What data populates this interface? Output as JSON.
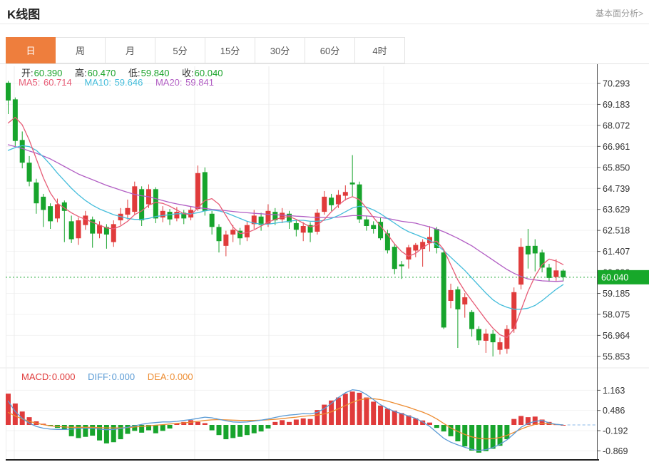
{
  "header": {
    "title": "K线图",
    "link_label": "基本面分析>"
  },
  "tabs": {
    "items": [
      {
        "label": "日",
        "active": true
      },
      {
        "label": "周",
        "active": false
      },
      {
        "label": "月",
        "active": false
      },
      {
        "label": "5分",
        "active": false
      },
      {
        "label": "15分",
        "active": false
      },
      {
        "label": "30分",
        "active": false
      },
      {
        "label": "60分",
        "active": false
      },
      {
        "label": "4时",
        "active": false
      }
    ]
  },
  "indicators": {
    "open_label": "开:",
    "open": "60.390",
    "high_label": "高:",
    "high": "60.470",
    "low_label": "低:",
    "low": "59.840",
    "close_label": "收:",
    "close": "60.040",
    "ma5_label": "MA5:",
    "ma5": "60.714",
    "ma10_label": "MA10:",
    "ma10": "59.646",
    "ma20_label": "MA20:",
    "ma20": "59.841",
    "macd_label": "MACD:",
    "macd": "0.000",
    "diff_label": "DIFF:",
    "diff": "0.000",
    "dea_label": "DEA:",
    "dea": "0.000"
  },
  "colors": {
    "up": "#e03b3b",
    "down": "#17a42c",
    "ma5": "#e75c76",
    "ma10": "#45bddb",
    "ma20": "#b25fc4",
    "diff": "#5b9bd5",
    "dea": "#ed8c31",
    "macd_text": "#e03b3b",
    "tab_accent": "#ee7e3d",
    "badge": "#17a82a",
    "price_line": "#21a636",
    "grid": "#f3f3f3",
    "vgrid": "#ececec",
    "axis": "#555555",
    "tick_text": "#333333"
  },
  "chart_data": {
    "type": "candlestick+macd",
    "main": {
      "title": "K线图 daily candlesticks",
      "y_ticks": [
        "70.293",
        "69.183",
        "68.072",
        "66.961",
        "65.850",
        "64.739",
        "63.629",
        "62.518",
        "61.407",
        "60.296",
        "59.185",
        "58.075",
        "56.964",
        "55.853"
      ],
      "axis_top_value": 70.293,
      "axis_bottom_value": 55.853,
      "last_price": "60.040",
      "price_line_value": 60.04,
      "candles": [
        [
          70.33,
          70.42,
          68.67,
          69.39
        ],
        [
          69.45,
          69.55,
          66.98,
          67.25
        ],
        [
          67.3,
          67.75,
          65.8,
          66.1
        ],
        [
          66.1,
          66.45,
          64.85,
          65.1
        ],
        [
          65.05,
          65.25,
          63.4,
          63.95
        ],
        [
          64.3,
          64.45,
          62.7,
          63.6
        ],
        [
          63.8,
          63.95,
          62.6,
          63.0
        ],
        [
          63.15,
          64.2,
          62.95,
          63.9
        ],
        [
          64.0,
          64.1,
          61.9,
          63.55
        ],
        [
          63.0,
          63.3,
          61.85,
          62.05
        ],
        [
          62.1,
          63.2,
          61.75,
          63.05
        ],
        [
          62.8,
          63.55,
          62.55,
          63.3
        ],
        [
          63.1,
          63.25,
          61.6,
          62.35
        ],
        [
          62.35,
          63.0,
          62.1,
          62.8
        ],
        [
          62.7,
          62.85,
          61.55,
          62.3
        ],
        [
          61.9,
          63.05,
          61.65,
          62.85
        ],
        [
          63.05,
          63.7,
          62.8,
          63.4
        ],
        [
          63.35,
          64.15,
          63.1,
          63.7
        ],
        [
          63.5,
          65.1,
          63.35,
          64.85
        ],
        [
          64.7,
          64.85,
          62.75,
          63.05
        ],
        [
          63.9,
          64.95,
          63.7,
          64.7
        ],
        [
          64.7,
          64.8,
          62.9,
          63.15
        ],
        [
          63.2,
          63.8,
          62.95,
          63.55
        ],
        [
          63.5,
          63.65,
          62.8,
          63.1
        ],
        [
          63.15,
          63.75,
          63.0,
          63.5
        ],
        [
          63.45,
          63.6,
          62.85,
          63.15
        ],
        [
          63.2,
          63.8,
          63.05,
          63.6
        ],
        [
          63.65,
          65.95,
          63.55,
          65.55
        ],
        [
          65.6,
          65.85,
          63.3,
          63.55
        ],
        [
          63.4,
          63.55,
          62.3,
          62.7
        ],
        [
          62.7,
          62.85,
          61.35,
          61.95
        ],
        [
          61.7,
          62.5,
          61.15,
          62.3
        ],
        [
          62.3,
          62.8,
          61.9,
          62.55
        ],
        [
          62.5,
          62.65,
          61.75,
          62.1
        ],
        [
          62.15,
          63.0,
          61.95,
          62.8
        ],
        [
          62.85,
          63.6,
          62.6,
          63.3
        ],
        [
          63.25,
          63.45,
          62.5,
          62.8
        ],
        [
          62.85,
          63.9,
          62.7,
          63.55
        ],
        [
          63.5,
          63.7,
          62.8,
          63.05
        ],
        [
          63.1,
          63.7,
          62.9,
          63.45
        ],
        [
          63.4,
          63.55,
          62.6,
          62.95
        ],
        [
          62.9,
          63.05,
          62.2,
          62.55
        ],
        [
          62.4,
          62.95,
          61.95,
          62.75
        ],
        [
          62.8,
          62.95,
          61.9,
          62.4
        ],
        [
          62.45,
          63.65,
          62.3,
          63.45
        ],
        [
          63.5,
          64.6,
          63.35,
          64.3
        ],
        [
          64.25,
          64.45,
          63.55,
          63.85
        ],
        [
          63.9,
          64.65,
          63.7,
          64.4
        ],
        [
          64.35,
          64.9,
          64.1,
          64.55
        ],
        [
          65.05,
          66.5,
          64.3,
          64.95
        ],
        [
          64.95,
          65.1,
          62.9,
          63.1
        ],
        [
          63.1,
          63.3,
          62.5,
          62.75
        ],
        [
          62.8,
          63.0,
          62.35,
          62.6
        ],
        [
          62.97,
          63.2,
          62.0,
          62.1
        ],
        [
          62.36,
          62.55,
          61.3,
          61.46
        ],
        [
          61.65,
          61.8,
          60.2,
          60.48
        ],
        [
          60.72,
          60.9,
          59.95,
          60.62
        ],
        [
          60.98,
          61.75,
          60.5,
          61.62
        ],
        [
          61.45,
          61.85,
          61.1,
          61.75
        ],
        [
          61.54,
          62.05,
          60.6,
          61.91
        ],
        [
          61.84,
          62.74,
          61.4,
          62.17
        ],
        [
          62.6,
          62.7,
          61.3,
          61.58
        ],
        [
          61.35,
          61.45,
          57.3,
          57.38
        ],
        [
          58.79,
          59.7,
          58.4,
          59.36
        ],
        [
          59.4,
          59.55,
          56.3,
          58.34
        ],
        [
          58.6,
          59.2,
          57.9,
          58.98
        ],
        [
          58.2,
          58.3,
          56.9,
          57.3
        ],
        [
          57.3,
          57.45,
          56.45,
          56.7
        ],
        [
          56.68,
          57.3,
          56.04,
          57.06
        ],
        [
          57.05,
          57.25,
          55.85,
          56.6
        ],
        [
          56.2,
          56.85,
          55.95,
          56.6
        ],
        [
          56.25,
          57.5,
          56.0,
          57.3
        ],
        [
          57.3,
          59.5,
          57.1,
          59.25
        ],
        [
          59.65,
          62.1,
          59.4,
          61.65
        ],
        [
          61.7,
          62.6,
          60.5,
          61.25
        ],
        [
          61.7,
          62.05,
          60.35,
          61.3
        ],
        [
          61.35,
          61.5,
          60.3,
          60.55
        ],
        [
          60.55,
          60.75,
          59.8,
          60.0
        ],
        [
          60.05,
          61.0,
          59.85,
          60.4
        ],
        [
          60.39,
          60.47,
          59.84,
          60.04
        ]
      ],
      "ma5": [
        68.2,
        68.5,
        68.1,
        67.3,
        66.3,
        65.3,
        64.5,
        63.95,
        63.7,
        63.45,
        63.25,
        63.1,
        62.95,
        62.8,
        62.65,
        62.6,
        62.75,
        63.0,
        63.35,
        63.55,
        63.85,
        64.0,
        63.95,
        63.8,
        63.6,
        63.4,
        63.35,
        63.7,
        64.1,
        64.2,
        63.9,
        63.3,
        62.7,
        62.35,
        62.4,
        62.55,
        62.75,
        62.95,
        63.1,
        63.2,
        63.25,
        63.1,
        62.9,
        62.7,
        62.8,
        63.1,
        63.5,
        63.85,
        64.15,
        64.3,
        64.15,
        63.7,
        63.2,
        62.75,
        62.3,
        61.8,
        61.4,
        61.15,
        61.3,
        61.6,
        61.85,
        61.95,
        61.5,
        60.7,
        59.9,
        59.3,
        58.8,
        58.3,
        57.8,
        57.35,
        57.0,
        56.85,
        57.3,
        58.3,
        59.3,
        60.1,
        60.7,
        61.0,
        60.9,
        60.71
      ],
      "ma10": [
        66.75,
        66.9,
        67.0,
        66.95,
        66.75,
        66.4,
        66.0,
        65.55,
        65.15,
        64.75,
        64.4,
        64.1,
        63.85,
        63.65,
        63.5,
        63.35,
        63.25,
        63.15,
        63.1,
        63.1,
        63.15,
        63.25,
        63.3,
        63.35,
        63.4,
        63.4,
        63.4,
        63.45,
        63.55,
        63.6,
        63.55,
        63.45,
        63.3,
        63.15,
        63.0,
        62.9,
        62.85,
        62.85,
        62.9,
        62.95,
        63.0,
        63.05,
        63.05,
        63.0,
        63.0,
        63.05,
        63.15,
        63.3,
        63.5,
        63.7,
        63.8,
        63.75,
        63.6,
        63.4,
        63.15,
        62.9,
        62.65,
        62.45,
        62.3,
        62.15,
        62.0,
        61.75,
        61.45,
        61.1,
        60.75,
        60.4,
        60.0,
        59.6,
        59.2,
        58.85,
        58.6,
        58.45,
        58.35,
        58.35,
        58.4,
        58.55,
        58.8,
        59.1,
        59.4,
        59.65
      ],
      "ma20": [
        67.05,
        66.95,
        66.85,
        66.72,
        66.6,
        66.45,
        66.3,
        66.1,
        65.9,
        65.7,
        65.5,
        65.35,
        65.2,
        65.05,
        64.9,
        64.78,
        64.65,
        64.53,
        64.42,
        64.35,
        64.3,
        64.2,
        64.1,
        64.0,
        63.92,
        63.85,
        63.78,
        63.72,
        63.68,
        63.63,
        63.6,
        63.56,
        63.52,
        63.48,
        63.45,
        63.42,
        63.4,
        63.37,
        63.35,
        63.32,
        63.3,
        63.27,
        63.25,
        63.22,
        63.21,
        63.2,
        63.2,
        63.22,
        63.26,
        63.3,
        63.3,
        63.28,
        63.25,
        63.2,
        63.15,
        63.08,
        63.0,
        62.95,
        62.9,
        62.8,
        62.7,
        62.58,
        62.45,
        62.28,
        62.1,
        61.9,
        61.7,
        61.45,
        61.2,
        60.95,
        60.7,
        60.45,
        60.25,
        60.08,
        59.95,
        59.9,
        59.85,
        59.83,
        59.82,
        59.84
      ]
    },
    "macd": {
      "y_ticks": [
        "1.163",
        "0.486",
        "-0.192",
        "-0.869"
      ],
      "histogram": [
        1.05,
        0.72,
        0.45,
        0.26,
        0.12,
        0.04,
        -0.04,
        -0.1,
        -0.16,
        -0.38,
        -0.44,
        -0.4,
        -0.36,
        -0.52,
        -0.62,
        -0.58,
        -0.48,
        -0.3,
        -0.2,
        -0.26,
        -0.18,
        -0.28,
        -0.2,
        -0.12,
        0.06,
        0.1,
        0.16,
        0.1,
        0.06,
        -0.18,
        -0.34,
        -0.48,
        -0.44,
        -0.4,
        -0.34,
        -0.28,
        -0.22,
        -0.12,
        0.1,
        0.16,
        0.1,
        0.18,
        0.22,
        0.2,
        0.5,
        0.68,
        0.82,
        0.92,
        1.05,
        1.12,
        1.08,
        0.92,
        0.78,
        0.65,
        0.55,
        0.48,
        0.4,
        0.32,
        0.22,
        0.15,
        0.08,
        -0.1,
        -0.22,
        -0.38,
        -0.55,
        -0.72,
        -0.86,
        -0.93,
        -0.88,
        -0.8,
        -0.7,
        -0.48,
        0.2,
        0.3,
        0.26,
        0.28,
        0.18,
        0.1,
        0.02,
        0.0
      ],
      "diff": [
        0.8,
        0.45,
        0.22,
        0.06,
        -0.05,
        -0.11,
        -0.14,
        -0.15,
        -0.15,
        -0.14,
        -0.12,
        -0.11,
        -0.12,
        -0.14,
        -0.16,
        -0.15,
        -0.12,
        -0.08,
        -0.03,
        0.02,
        0.06,
        0.08,
        0.1,
        0.1,
        0.12,
        0.15,
        0.18,
        0.22,
        0.26,
        0.24,
        0.19,
        0.14,
        0.1,
        0.09,
        0.1,
        0.13,
        0.16,
        0.2,
        0.25,
        0.3,
        0.33,
        0.35,
        0.38,
        0.37,
        0.42,
        0.55,
        0.72,
        0.92,
        1.08,
        1.18,
        1.15,
        1.02,
        0.85,
        0.68,
        0.55,
        0.45,
        0.38,
        0.3,
        0.22,
        0.1,
        -0.05,
        -0.25,
        -0.45,
        -0.58,
        -0.67,
        -0.75,
        -0.82,
        -0.86,
        -0.83,
        -0.76,
        -0.65,
        -0.5,
        -0.3,
        -0.08,
        0.05,
        0.12,
        0.15,
        0.07,
        0.02,
        0.0
      ],
      "dea": [
        0.42,
        0.3,
        0.2,
        0.12,
        0.06,
        0.01,
        -0.03,
        -0.05,
        -0.07,
        -0.08,
        -0.08,
        -0.08,
        -0.08,
        -0.09,
        -0.1,
        -0.1,
        -0.1,
        -0.09,
        -0.07,
        -0.05,
        -0.03,
        -0.01,
        0.01,
        0.03,
        0.05,
        0.07,
        0.09,
        0.12,
        0.15,
        0.17,
        0.18,
        0.17,
        0.16,
        0.15,
        0.15,
        0.15,
        0.16,
        0.17,
        0.19,
        0.21,
        0.24,
        0.26,
        0.29,
        0.31,
        0.33,
        0.37,
        0.44,
        0.54,
        0.65,
        0.76,
        0.84,
        0.88,
        0.88,
        0.85,
        0.8,
        0.73,
        0.66,
        0.59,
        0.51,
        0.43,
        0.33,
        0.2,
        0.05,
        -0.1,
        -0.22,
        -0.32,
        -0.4,
        -0.45,
        -0.47,
        -0.46,
        -0.42,
        -0.35,
        -0.25,
        -0.14,
        -0.05,
        0.02,
        0.05,
        0.04,
        0.02,
        0.0
      ]
    },
    "layout": {
      "grid": true,
      "vgrid_x": [
        20,
        273,
        377,
        538
      ],
      "legend_position": "none"
    }
  }
}
